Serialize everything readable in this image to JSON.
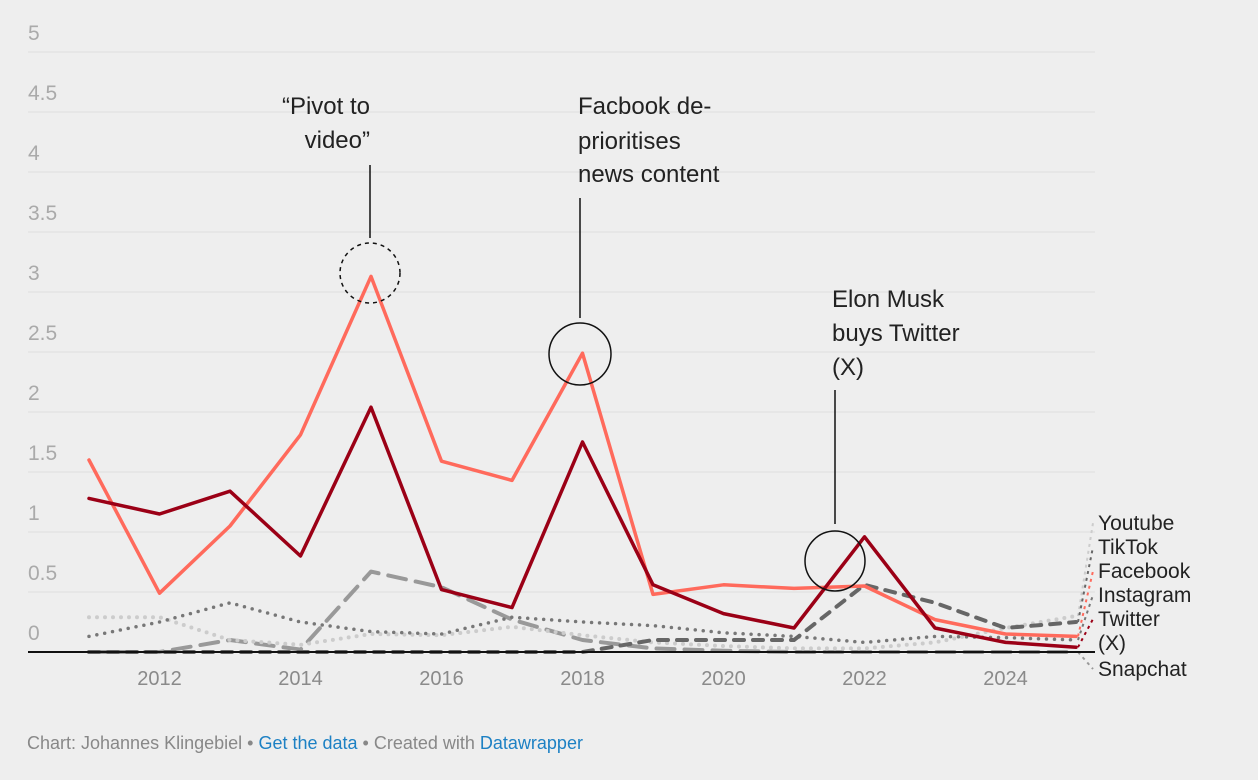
{
  "chart_data": {
    "type": "line",
    "title": "",
    "xlabel": "",
    "ylabel": "",
    "ylim": [
      0,
      5
    ],
    "xlim": [
      2011,
      2025
    ],
    "grid": true,
    "y_ticks": [
      "0",
      "0.5",
      "1",
      "1.5",
      "2",
      "2.5",
      "3",
      "3.5",
      "4",
      "4.5",
      "5"
    ],
    "x_ticks": [
      "2012",
      "2014",
      "2016",
      "2018",
      "2020",
      "2022",
      "2024"
    ],
    "x": [
      2011,
      2012,
      2013,
      2014,
      2015,
      2016,
      2017,
      2018,
      2019,
      2020,
      2021,
      2022,
      2023,
      2024,
      2025
    ],
    "legend": "end-of-line labels (right)",
    "series": [
      {
        "name": "Youtube",
        "color": "#cccccc",
        "style": "dotted",
        "values": [
          0.29,
          0.29,
          0.1,
          0.06,
          0.15,
          0.14,
          0.21,
          0.14,
          0.08,
          0.05,
          0.03,
          0.03,
          0.08,
          0.2,
          0.3
        ]
      },
      {
        "name": "TikTok",
        "color": "#666666",
        "style": "dashed",
        "values": [
          0,
          0,
          0,
          0,
          0,
          0,
          0,
          0,
          0.1,
          0.1,
          0.1,
          0.56,
          0.41,
          0.2,
          0.25
        ]
      },
      {
        "name": "Facebook",
        "color": "#ff6a5c",
        "style": "solid",
        "values": [
          1.6,
          0.49,
          1.05,
          1.81,
          3.13,
          1.59,
          1.43,
          2.49,
          0.48,
          0.56,
          0.53,
          0.55,
          0.27,
          0.15,
          0.13
        ]
      },
      {
        "name": "Instagram",
        "color": "#777777",
        "style": "dotted-dark",
        "values": [
          0.13,
          0.25,
          0.41,
          0.25,
          0.17,
          0.15,
          0.29,
          0.25,
          0.22,
          0.16,
          0.13,
          0.08,
          0.13,
          0.12,
          0.1
        ]
      },
      {
        "name": "Twitter (X)",
        "color": "#9b0016",
        "style": "solid",
        "values": [
          1.28,
          1.15,
          1.34,
          0.8,
          2.04,
          0.52,
          0.37,
          1.75,
          0.56,
          0.32,
          0.2,
          0.96,
          0.2,
          0.08,
          0.04
        ]
      },
      {
        "name": "Snapchat",
        "color": "#999999",
        "style": "longdash",
        "values": [
          0,
          0,
          0.1,
          0.02,
          0.67,
          0.54,
          0.27,
          0.1,
          0.03,
          0.01,
          0,
          0,
          0,
          0,
          0
        ]
      }
    ],
    "annotations": [
      {
        "lines": [
          "“Pivot to video”"
        ],
        "line1": "“Pivot to",
        "line2": "video”",
        "x": 2015,
        "y": 3.13
      },
      {
        "line1": "Facbook de-",
        "line2": "prioritises",
        "line3": "news content",
        "x": 2018,
        "y": 2.49
      },
      {
        "line1": "Elon Musk",
        "line2": "buys Twitter",
        "line3": "(X)",
        "x": 2022,
        "y": 0.6
      }
    ]
  },
  "footer": {
    "credit": "Chart: Johannes Klingebiel",
    "sep1": " • ",
    "get_data": "Get the data",
    "sep2": " • Created with ",
    "datawrapper": "Datawrapper"
  }
}
